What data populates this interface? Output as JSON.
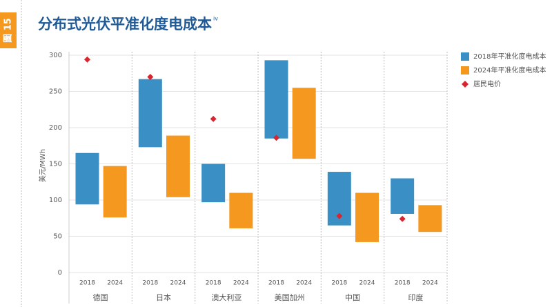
{
  "tab_label": "圖 15",
  "chart_data": {
    "type": "floating_bar",
    "title": "分布式光伏平准化度电成本",
    "title_note": "iv",
    "y_label": "美元/MWh",
    "categories": [
      "德国",
      "日本",
      "澳大利亚",
      "美国加州",
      "中国",
      "印度"
    ],
    "bar_labels": [
      "2018",
      "2024"
    ],
    "series": [
      {
        "name": "2018年平准化度电成本",
        "color": "#3a8fc4",
        "low": [
          94,
          173,
          97,
          185,
          65,
          81
        ],
        "high": [
          165,
          267,
          150,
          293,
          139,
          130
        ]
      },
      {
        "name": "2024年平准化度电成本",
        "color": "#f5981f",
        "low": [
          76,
          104,
          61,
          157,
          42,
          56
        ],
        "high": [
          147,
          189,
          110,
          255,
          110,
          93
        ]
      }
    ],
    "markers": {
      "name": "居民电价",
      "color": "#d7262f",
      "values": [
        294,
        270,
        212,
        186,
        78,
        74
      ]
    },
    "ylim": [
      0,
      300
    ],
    "yticks": [
      0,
      50,
      100,
      150,
      200,
      250,
      300
    ],
    "grid": true
  }
}
